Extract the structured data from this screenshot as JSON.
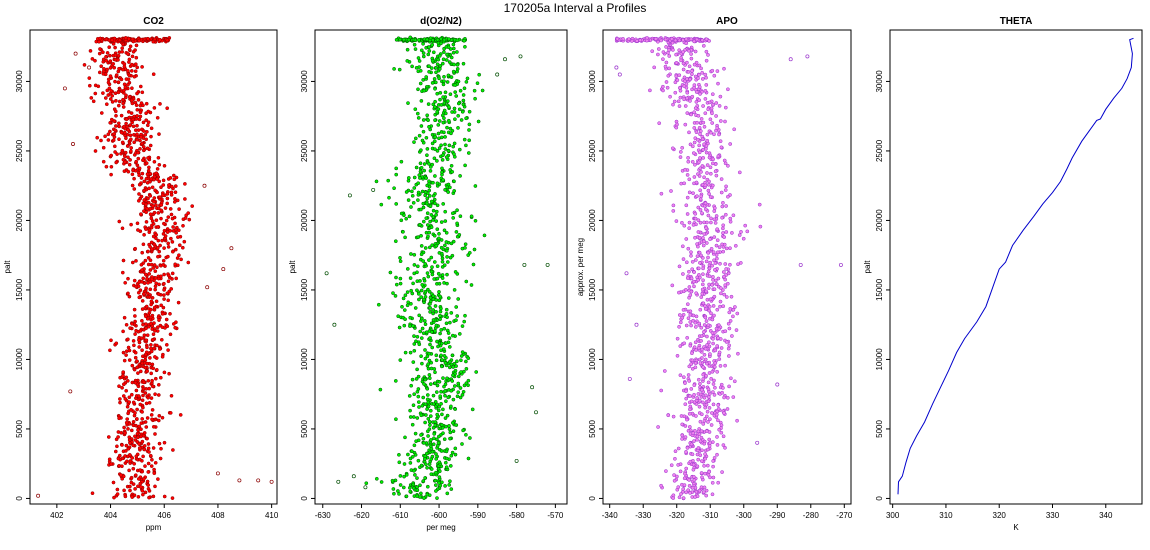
{
  "figure_title": "170205a   Interval a Profiles",
  "colors": {
    "co2_fill": "#ff0000",
    "co2_edge": "#8b0000",
    "o2n2_fill": "#00ee00",
    "o2n2_edge": "#004d00",
    "apo_fill": "#ee82ee",
    "apo_edge": "#9932cc",
    "theta_line": "#0000cc"
  },
  "chart_data": [
    {
      "type": "scatter",
      "title": "CO2",
      "xlabel": "ppm",
      "ylabel": "palt",
      "xlim": [
        401,
        410.2
      ],
      "ylim": [
        -400,
        33700
      ],
      "xticks": [
        402,
        404,
        406,
        408,
        410
      ],
      "yticks": [
        0,
        5000,
        10000,
        15000,
        20000,
        25000,
        30000
      ],
      "series": [
        {
          "profile": [
            [
              33000,
              404.5
            ],
            [
              32000,
              404.3
            ],
            [
              30000,
              404.2
            ],
            [
              28000,
              404.8
            ],
            [
              26500,
              404.7
            ],
            [
              25000,
              404.6
            ],
            [
              24000,
              404.9
            ],
            [
              23000,
              405.6
            ],
            [
              22000,
              405.8
            ],
            [
              21000,
              405.9
            ],
            [
              20000,
              405.7
            ],
            [
              19000,
              405.9
            ],
            [
              18000,
              405.8
            ],
            [
              17000,
              405.7
            ],
            [
              16000,
              405.6
            ],
            [
              15000,
              405.4
            ],
            [
              14000,
              405.5
            ],
            [
              13000,
              405.4
            ],
            [
              12000,
              405.3
            ],
            [
              11000,
              405.1
            ],
            [
              10000,
              405.2
            ],
            [
              9000,
              405.1
            ],
            [
              8000,
              405.0
            ],
            [
              7000,
              405.0
            ],
            [
              6000,
              405.1
            ],
            [
              5000,
              404.9
            ],
            [
              4000,
              404.9
            ],
            [
              3000,
              404.8
            ],
            [
              2000,
              404.9
            ],
            [
              1000,
              405.0
            ],
            [
              0,
              405.0
            ]
          ],
          "spread": 0.8,
          "count": 1200,
          "cap_y": 33000,
          "cap_x": [
            403.5,
            406.2
          ],
          "outliers": [
            [
              401.3,
              200
            ],
            [
              402.5,
              7700
            ],
            [
              408.8,
              1300
            ],
            [
              409.5,
              1300
            ],
            [
              410,
              1200
            ],
            [
              408,
              1800
            ],
            [
              402.3,
              29500
            ],
            [
              402.6,
              25500
            ],
            [
              407.5,
              22500
            ],
            [
              408.5,
              18000
            ],
            [
              408.2,
              16500
            ],
            [
              407.6,
              15200
            ],
            [
              402.7,
              32000
            ],
            [
              403.2,
              31000
            ]
          ]
        }
      ]
    },
    {
      "type": "scatter",
      "title": "d(O2/N2)",
      "xlabel": "per meg",
      "ylabel": "palt",
      "xlim": [
        -632,
        -567
      ],
      "ylim": [
        -400,
        33700
      ],
      "xticks": [
        -630,
        -620,
        -610,
        -600,
        -590,
        -580,
        -570
      ],
      "yticks": [
        0,
        5000,
        10000,
        15000,
        20000,
        25000,
        30000
      ],
      "series": [
        {
          "profile": [
            [
              33000,
              -602
            ],
            [
              32000,
              -601
            ],
            [
              30000,
              -600
            ],
            [
              28000,
              -599
            ],
            [
              26000,
              -599
            ],
            [
              24000,
              -601
            ],
            [
              22000,
              -603
            ],
            [
              20000,
              -602
            ],
            [
              18000,
              -601
            ],
            [
              16000,
              -602
            ],
            [
              15000,
              -603
            ],
            [
              14000,
              -603
            ],
            [
              12000,
              -601
            ],
            [
              10000,
              -600
            ],
            [
              8000,
              -601
            ],
            [
              6000,
              -600
            ],
            [
              4000,
              -601
            ],
            [
              2000,
              -603
            ],
            [
              1000,
              -605
            ],
            [
              0,
              -603
            ]
          ],
          "spread": 7,
          "count": 1100,
          "cap_y": 33000,
          "cap_x": [
            -611,
            -593
          ],
          "outliers": [
            [
              -629,
              16200
            ],
            [
              -572,
              16800
            ],
            [
              -578,
              16800
            ],
            [
              -627,
              12500
            ],
            [
              -626,
              1200
            ],
            [
              -622,
              1600
            ],
            [
              -619,
              800
            ],
            [
              -623,
              21800
            ],
            [
              -617,
              22200
            ],
            [
              -575,
              6200
            ],
            [
              -580,
              2700
            ],
            [
              -576,
              8000
            ],
            [
              -585,
              30500
            ],
            [
              -583,
              31600
            ],
            [
              -579,
              31800
            ]
          ]
        }
      ]
    },
    {
      "type": "scatter",
      "title": "APO",
      "xlabel": "",
      "ylabel": "approx. per meg",
      "xlim": [
        -342,
        -268
      ],
      "ylim": [
        -400,
        33700
      ],
      "xticks": [
        -340,
        -330,
        -320,
        -310,
        -300,
        -290,
        -280,
        -270
      ],
      "yticks": [
        0,
        5000,
        10000,
        15000,
        20000,
        25000,
        30000
      ],
      "series": [
        {
          "profile": [
            [
              33000,
              -320
            ],
            [
              32000,
              -318
            ],
            [
              30000,
              -316
            ],
            [
              28000,
              -313
            ],
            [
              26000,
              -312
            ],
            [
              24000,
              -312
            ],
            [
              22000,
              -312
            ],
            [
              20000,
              -310
            ],
            [
              18000,
              -310
            ],
            [
              16000,
              -311
            ],
            [
              14000,
              -312
            ],
            [
              12000,
              -311
            ],
            [
              10000,
              -312
            ],
            [
              8000,
              -313
            ],
            [
              6000,
              -312
            ],
            [
              4000,
              -313
            ],
            [
              2000,
              -316
            ],
            [
              1000,
              -315
            ],
            [
              0,
              -316
            ]
          ],
          "spread": 7,
          "count": 1100,
          "cap_y": 33000,
          "cap_x": [
            -338,
            -310
          ],
          "outliers": [
            [
              -338,
              31000
            ],
            [
              -337,
              30500
            ],
            [
              -334,
              8600
            ],
            [
              -332,
              12500
            ],
            [
              -283,
              16800
            ],
            [
              -271,
              16800
            ],
            [
              -286,
              31600
            ],
            [
              -281,
              31800
            ],
            [
              -335,
              16200
            ],
            [
              -290,
              8200
            ],
            [
              -296,
              4000
            ]
          ]
        }
      ]
    },
    {
      "type": "line",
      "title": "THETA",
      "xlabel": "K",
      "ylabel": "palt",
      "xlim": [
        299.5,
        346.8
      ],
      "ylim": [
        -400,
        33700
      ],
      "xticks": [
        300,
        310,
        320,
        330,
        340
      ],
      "yticks": [
        0,
        5000,
        10000,
        15000,
        20000,
        25000,
        30000
      ],
      "series": [
        {
          "points": [
            [
              301,
              300
            ],
            [
              301.1,
              1200
            ],
            [
              301.8,
              1600
            ],
            [
              302.5,
              2600
            ],
            [
              303.3,
              3600
            ],
            [
              304.5,
              4500
            ],
            [
              306,
              5500
            ],
            [
              307.5,
              6800
            ],
            [
              309,
              8000
            ],
            [
              310.5,
              9200
            ],
            [
              312,
              10500
            ],
            [
              313.5,
              11500
            ],
            [
              315.8,
              12700
            ],
            [
              317.5,
              13800
            ],
            [
              318.8,
              15200
            ],
            [
              320,
              16500
            ],
            [
              321.2,
              17000
            ],
            [
              322.5,
              18200
            ],
            [
              324.5,
              19300
            ],
            [
              326.5,
              20300
            ],
            [
              328.2,
              21200
            ],
            [
              330,
              22000
            ],
            [
              331.5,
              22800
            ],
            [
              332.7,
              23700
            ],
            [
              333.7,
              24500
            ],
            [
              335.5,
              25700
            ],
            [
              337,
              26500
            ],
            [
              338.3,
              27200
            ],
            [
              339,
              27300
            ],
            [
              340,
              28000
            ],
            [
              341.5,
              28800
            ],
            [
              343,
              29500
            ],
            [
              344,
              30200
            ],
            [
              344.8,
              31000
            ],
            [
              345,
              32000
            ],
            [
              344.5,
              33000
            ],
            [
              345.2,
              33100
            ]
          ]
        }
      ]
    }
  ]
}
